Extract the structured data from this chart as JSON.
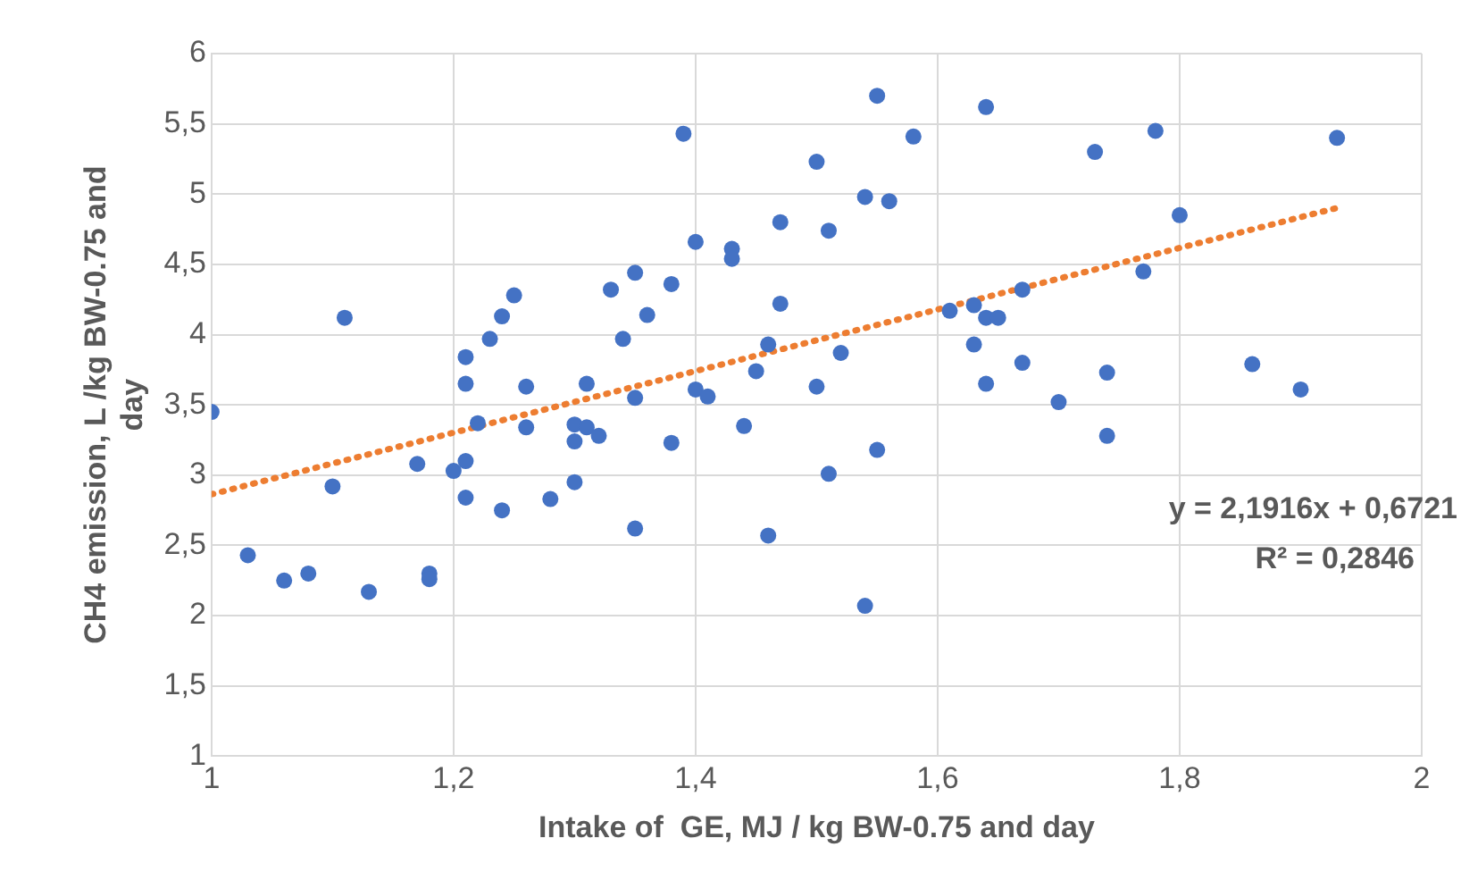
{
  "chart_data": {
    "type": "scatter",
    "xlabel": "Intake of  GE, MJ / kg BW-0.75 and day",
    "ylabel": "CH4 emission, L /kg BW-0.75 and day",
    "xlim": [
      1,
      2
    ],
    "xticks": [
      1,
      {
        "value": 1.2,
        "label": "1,2"
      },
      {
        "value": 1.4,
        "label": "1,4"
      },
      {
        "value": 1.6,
        "label": "1,6"
      },
      {
        "value": 1.8,
        "label": "1,8"
      },
      2
    ],
    "ylim": [
      1,
      6
    ],
    "yticks": [
      1,
      {
        "value": 1.5,
        "label": "1,5"
      },
      2,
      {
        "value": 2.5,
        "label": "2,5"
      },
      3,
      {
        "value": 3.5,
        "label": "3,5"
      },
      4,
      {
        "value": 4.5,
        "label": "4,5"
      },
      5,
      {
        "value": 5.5,
        "label": "5,5"
      },
      6
    ],
    "grid": true,
    "legend": false,
    "marker": "circle",
    "annotations": [
      "y = 2,1916x + 0,6721",
      "R² = 0,2846"
    ],
    "series": [
      {
        "color": "#4472c4",
        "x": [
          1.0,
          1.03,
          1.06,
          1.08,
          1.1,
          1.11,
          1.13,
          1.17,
          1.18,
          1.18,
          1.2,
          1.21,
          1.21,
          1.21,
          1.21,
          1.22,
          1.23,
          1.24,
          1.24,
          1.25,
          1.26,
          1.26,
          1.28,
          1.3,
          1.3,
          1.3,
          1.31,
          1.31,
          1.32,
          1.33,
          1.34,
          1.35,
          1.35,
          1.35,
          1.36,
          1.38,
          1.38,
          1.39,
          1.4,
          1.4,
          1.41,
          1.43,
          1.43,
          1.44,
          1.45,
          1.46,
          1.46,
          1.47,
          1.47,
          1.5,
          1.5,
          1.51,
          1.51,
          1.52,
          1.54,
          1.54,
          1.55,
          1.55,
          1.56,
          1.58,
          1.61,
          1.63,
          1.63,
          1.64,
          1.64,
          1.64,
          1.65,
          1.67,
          1.67,
          1.7,
          1.73,
          1.74,
          1.74,
          1.77,
          1.78,
          1.8,
          1.86,
          1.9,
          1.93
        ],
        "values": [
          3.45,
          2.43,
          2.25,
          2.3,
          2.92,
          4.12,
          2.17,
          3.08,
          2.3,
          2.26,
          3.03,
          3.84,
          3.65,
          3.1,
          2.84,
          3.37,
          3.97,
          4.13,
          2.75,
          4.28,
          3.63,
          3.34,
          2.83,
          3.36,
          3.24,
          2.95,
          3.65,
          3.34,
          3.28,
          4.32,
          3.97,
          4.44,
          3.55,
          2.62,
          4.14,
          4.36,
          3.23,
          5.43,
          4.66,
          3.61,
          3.56,
          4.61,
          4.54,
          3.35,
          3.74,
          3.93,
          2.57,
          4.22,
          4.8,
          5.23,
          3.63,
          4.74,
          3.01,
          3.87,
          4.98,
          2.07,
          5.7,
          3.18,
          4.95,
          5.41,
          4.17,
          4.21,
          3.93,
          5.62,
          4.12,
          3.65,
          4.12,
          4.32,
          3.8,
          3.52,
          5.3,
          3.73,
          3.28,
          4.45,
          5.45,
          4.85,
          3.79,
          3.61,
          5.4
        ]
      },
      {
        "type": "line",
        "color": "#ed7d31",
        "line_style": "dotted",
        "marker": "none",
        "x": [
          1.0,
          1.93
        ],
        "values": [
          2.864,
          4.902
        ]
      }
    ]
  }
}
